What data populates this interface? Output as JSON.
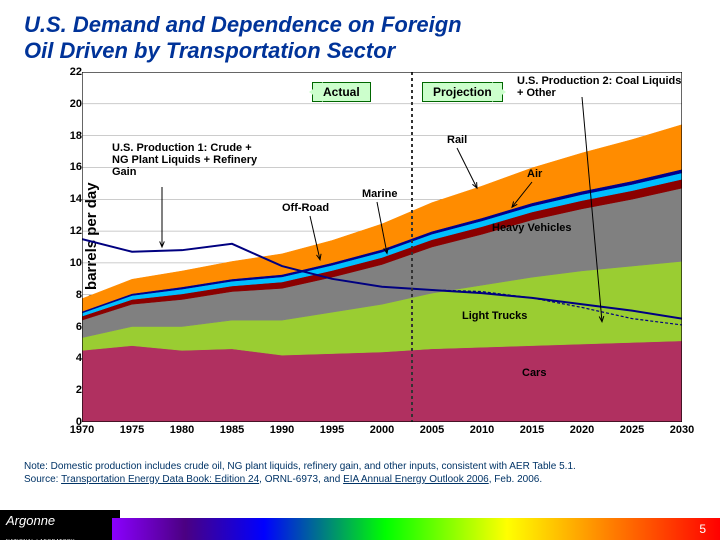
{
  "title": {
    "line1": "U.S. Demand and Dependence on Foreign",
    "line2": "Oil Driven by Transportation Sector",
    "color": "#003399",
    "fontsize": 22
  },
  "chart": {
    "type": "stacked-area",
    "ylabel": "Million barrels per day",
    "ylim": [
      0,
      22
    ],
    "ytick_step": 2,
    "xlim": [
      1970,
      2030
    ],
    "xtick_step": 5,
    "years": [
      1970,
      1975,
      1980,
      1985,
      1990,
      1995,
      2000,
      2005,
      2010,
      2015,
      2020,
      2025,
      2030
    ],
    "divider_year": 2003,
    "background_color": "#ffffff",
    "grid_color": "#999999",
    "divider_color": "#333333",
    "series": [
      {
        "name": "Cars",
        "color": "#b03060",
        "values": [
          4.5,
          4.8,
          4.5,
          4.6,
          4.2,
          4.3,
          4.4,
          4.6,
          4.7,
          4.8,
          4.9,
          5.0,
          5.1
        ]
      },
      {
        "name": "Light Trucks",
        "color": "#9acd32",
        "values": [
          0.8,
          1.2,
          1.5,
          1.8,
          2.2,
          2.6,
          3.0,
          3.5,
          3.9,
          4.3,
          4.6,
          4.8,
          5.0
        ]
      },
      {
        "name": "Heavy Vehicles",
        "color": "#808080",
        "values": [
          1.1,
          1.4,
          1.7,
          1.8,
          2.0,
          2.2,
          2.5,
          2.9,
          3.2,
          3.6,
          3.9,
          4.2,
          4.6
        ]
      },
      {
        "name": "Off-Road",
        "color": "#8b0000",
        "values": [
          0.25,
          0.3,
          0.35,
          0.35,
          0.4,
          0.42,
          0.44,
          0.46,
          0.48,
          0.5,
          0.52,
          0.54,
          0.56
        ]
      },
      {
        "name": "Marine",
        "color": "#00bfff",
        "values": [
          0.2,
          0.25,
          0.3,
          0.3,
          0.32,
          0.33,
          0.34,
          0.35,
          0.36,
          0.37,
          0.38,
          0.39,
          0.4
        ]
      },
      {
        "name": "Rail",
        "color": "#00008b",
        "values": [
          0.1,
          0.12,
          0.14,
          0.14,
          0.15,
          0.16,
          0.17,
          0.18,
          0.19,
          0.2,
          0.21,
          0.22,
          0.23
        ]
      },
      {
        "name": "Air",
        "color": "#ff8c00",
        "values": [
          0.8,
          0.9,
          1.0,
          1.1,
          1.3,
          1.4,
          1.6,
          1.8,
          2.0,
          2.2,
          2.4,
          2.6,
          2.8
        ]
      }
    ],
    "production_lines": [
      {
        "name": "U.S. Production 1",
        "color": "#000080",
        "width": 2,
        "values": [
          11.5,
          10.7,
          10.8,
          11.2,
          9.8,
          9.0,
          8.5,
          8.3,
          8.1,
          7.8,
          7.4,
          7.0,
          6.5
        ]
      },
      {
        "name": "U.S. Production 2",
        "color": "#000080",
        "width": 1.2,
        "dash": "3,2",
        "values": [
          11.5,
          10.7,
          10.8,
          11.2,
          9.8,
          9.0,
          8.5,
          8.3,
          8.2,
          7.8,
          7.2,
          6.5,
          6.1
        ]
      }
    ],
    "pills": {
      "actual": "Actual",
      "projection": "Projection",
      "bg": "#ccffcc",
      "border": "#006600"
    },
    "labels": {
      "cars": "Cars",
      "lighttrucks": "Light Trucks",
      "heavy": "Heavy Vehicles",
      "air": "Air",
      "rail": "Rail",
      "marine": "Marine",
      "offroad": "Off-Road",
      "prod1": "U.S. Production 1: Crude + NG Plant Liquids + Refinery Gain",
      "prod2": "U.S. Production 2: Coal Liquids + Other"
    }
  },
  "note": {
    "line1_a": "Note:  Domestic production includes crude oil, NG plant liquids, refinery gain, and other inputs, consistent with AER Table 5.1.",
    "line2_a": "Source: ",
    "line2_b": "Transportation Energy Data Book: Edition 24",
    "line2_c": ", ORNL-6973, and ",
    "line2_d": "EIA Annual Energy Outlook 2006",
    "line2_e": ", Feb. 2006.",
    "color": "#003366",
    "fontsize": 10
  },
  "footer": {
    "logo_main": "Argonne",
    "logo_sub": "NATIONAL LABORATORY",
    "page": "5"
  }
}
